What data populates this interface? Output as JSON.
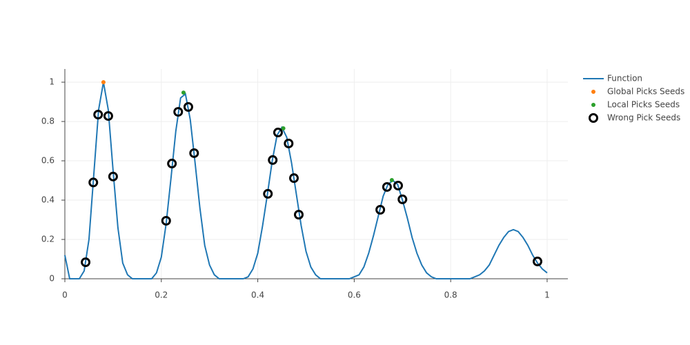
{
  "chart_data": {
    "type": "line",
    "xlim": [
      0,
      1.043
    ],
    "ylim": [
      0,
      1.067
    ],
    "xticks": [
      0,
      0.2,
      0.4,
      0.6,
      0.8,
      1
    ],
    "yticks": [
      0,
      0.2,
      0.4,
      0.6,
      0.8,
      1
    ],
    "grid": true,
    "legend": "outside-right",
    "series": [
      {
        "name": "Function",
        "color": "#1f77b4",
        "mode": "line",
        "x": [
          0,
          0.01,
          0.02,
          0.03,
          0.04,
          0.05,
          0.06,
          0.07,
          0.08,
          0.09,
          0.1,
          0.11,
          0.12,
          0.13,
          0.14,
          0.15,
          0.16,
          0.17,
          0.18,
          0.19,
          0.2,
          0.21,
          0.22,
          0.23,
          0.24,
          0.25,
          0.26,
          0.27,
          0.28,
          0.29,
          0.3,
          0.31,
          0.32,
          0.33,
          0.34,
          0.35,
          0.36,
          0.37,
          0.38,
          0.39,
          0.4,
          0.41,
          0.42,
          0.43,
          0.44,
          0.45,
          0.46,
          0.47,
          0.48,
          0.49,
          0.5,
          0.51,
          0.52,
          0.53,
          0.54,
          0.55,
          0.56,
          0.57,
          0.58,
          0.59,
          0.6,
          0.61,
          0.62,
          0.63,
          0.64,
          0.65,
          0.66,
          0.67,
          0.68,
          0.69,
          0.7,
          0.71,
          0.72,
          0.73,
          0.74,
          0.75,
          0.76,
          0.77,
          0.78,
          0.79,
          0.8,
          0.81,
          0.82,
          0.83,
          0.84,
          0.85,
          0.86,
          0.87,
          0.88,
          0.89,
          0.9,
          0.91,
          0.92,
          0.93,
          0.94,
          0.95,
          0.96,
          0.97,
          0.98,
          0.99,
          1
        ],
        "values": [
          0.12,
          0,
          0,
          0,
          0.04,
          0.2,
          0.53,
          0.86,
          1,
          0.86,
          0.55,
          0.26,
          0.08,
          0.02,
          0,
          0,
          0,
          0,
          0,
          0.03,
          0.11,
          0.28,
          0.51,
          0.75,
          0.92,
          0.94,
          0.81,
          0.59,
          0.36,
          0.17,
          0.07,
          0.02,
          0,
          0,
          0,
          0,
          0,
          0,
          0.01,
          0.05,
          0.13,
          0.27,
          0.43,
          0.6,
          0.73,
          0.77,
          0.72,
          0.59,
          0.43,
          0.27,
          0.14,
          0.06,
          0.02,
          0,
          0,
          0,
          0,
          0,
          0,
          0,
          0.01,
          0.02,
          0.06,
          0.13,
          0.22,
          0.32,
          0.42,
          0.48,
          0.5,
          0.48,
          0.4,
          0.31,
          0.21,
          0.13,
          0.07,
          0.03,
          0.01,
          0,
          0,
          0,
          0,
          0,
          0,
          0,
          0,
          0.01,
          0.02,
          0.04,
          0.07,
          0.12,
          0.17,
          0.21,
          0.24,
          0.25,
          0.24,
          0.21,
          0.17,
          0.12,
          0.08,
          0.05,
          0.03
        ]
      },
      {
        "name": "Global Picks Seeds",
        "color": "#ff7f0e",
        "mode": "markers",
        "x": [
          0.08
        ],
        "values": [
          1
        ]
      },
      {
        "name": "Local Picks Seeds",
        "color": "#2ca02c",
        "mode": "markers",
        "x": [
          0.246,
          0.453,
          0.678
        ],
        "values": [
          0.947,
          0.765,
          0.502
        ]
      },
      {
        "name": "Wrong Pick Seeds",
        "color": "#000000",
        "mode": "open-markers",
        "x": [
          0.043,
          0.059,
          0.069,
          0.09,
          0.1,
          0.21,
          0.222,
          0.235,
          0.256,
          0.268,
          0.421,
          0.431,
          0.442,
          0.464,
          0.475,
          0.485,
          0.654,
          0.668,
          0.691,
          0.7,
          0.98
        ],
        "values": [
          0.084,
          0.49,
          0.835,
          0.828,
          0.52,
          0.295,
          0.586,
          0.849,
          0.874,
          0.639,
          0.432,
          0.604,
          0.744,
          0.688,
          0.512,
          0.326,
          0.351,
          0.467,
          0.474,
          0.404,
          0.088
        ]
      }
    ]
  }
}
